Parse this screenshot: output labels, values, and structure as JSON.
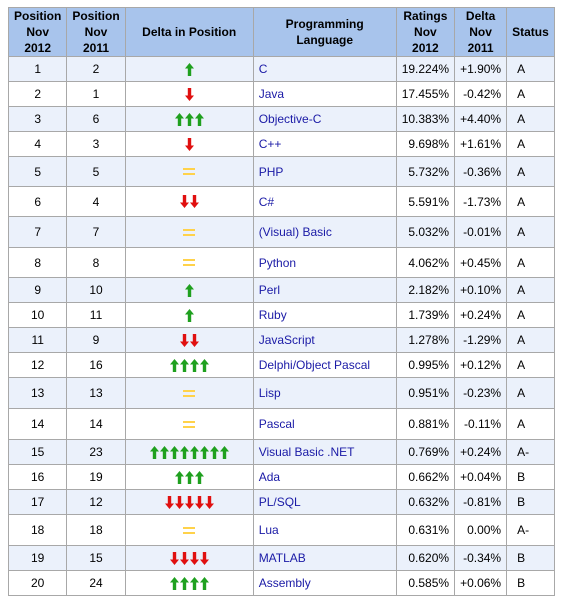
{
  "headers": {
    "pos_now": [
      "Position",
      "Nov 2012"
    ],
    "pos_prev": [
      "Position",
      "Nov 2011"
    ],
    "delta_pos": "Delta in Position",
    "language": "Programming Language",
    "ratings": [
      "Ratings",
      "Nov 2012"
    ],
    "delta": [
      "Delta",
      "Nov 2011"
    ],
    "status": "Status"
  },
  "colors": {
    "header_bg": "#a8c4ec",
    "stripe_bg": "#ebf1fb",
    "up": "#1fa01f",
    "down": "#e01010",
    "equal": "#ffd24a",
    "link": "#1a1aa6"
  },
  "rows": [
    {
      "pos": "1",
      "prev": "2",
      "trend": "up",
      "n": 1,
      "lang": "C",
      "rating": "19.224%",
      "delta": "+1.90%",
      "status": "A",
      "h": "h2"
    },
    {
      "pos": "2",
      "prev": "1",
      "trend": "down",
      "n": 1,
      "lang": "Java",
      "rating": "17.455%",
      "delta": "-0.42%",
      "status": "A",
      "h": "h2"
    },
    {
      "pos": "3",
      "prev": "6",
      "trend": "up",
      "n": 3,
      "lang": "Objective-C",
      "rating": "10.383%",
      "delta": "+4.40%",
      "status": "A",
      "h": "h2"
    },
    {
      "pos": "4",
      "prev": "3",
      "trend": "down",
      "n": 1,
      "lang": "C++",
      "rating": "9.698%",
      "delta": "+1.61%",
      "status": "A",
      "h": "h2"
    },
    {
      "pos": "5",
      "prev": "5",
      "trend": "equal",
      "n": 1,
      "lang": "PHP",
      "rating": "5.732%",
      "delta": "-0.36%",
      "status": "A",
      "h": "h1"
    },
    {
      "pos": "6",
      "prev": "4",
      "trend": "down",
      "n": 2,
      "lang": "C#",
      "rating": "5.591%",
      "delta": "-1.73%",
      "status": "A",
      "h": "h1"
    },
    {
      "pos": "7",
      "prev": "7",
      "trend": "equal",
      "n": 1,
      "lang": "(Visual) Basic",
      "rating": "5.032%",
      "delta": "-0.01%",
      "status": "A",
      "h": "h3"
    },
    {
      "pos": "8",
      "prev": "8",
      "trend": "equal",
      "n": 1,
      "lang": "Python",
      "rating": "4.062%",
      "delta": "+0.45%",
      "status": "A",
      "h": "h1"
    },
    {
      "pos": "9",
      "prev": "10",
      "trend": "up",
      "n": 1,
      "lang": "Perl",
      "rating": "2.182%",
      "delta": "+0.10%",
      "status": "A",
      "h": "h2"
    },
    {
      "pos": "10",
      "prev": "11",
      "trend": "up",
      "n": 1,
      "lang": "Ruby",
      "rating": "1.739%",
      "delta": "+0.24%",
      "status": "A",
      "h": "h2"
    },
    {
      "pos": "11",
      "prev": "9",
      "trend": "down",
      "n": 2,
      "lang": "JavaScript",
      "rating": "1.278%",
      "delta": "-1.29%",
      "status": "A",
      "h": "h2"
    },
    {
      "pos": "12",
      "prev": "16",
      "trend": "up",
      "n": 4,
      "lang": "Delphi/Object Pascal",
      "rating": "0.995%",
      "delta": "+0.12%",
      "status": "A",
      "h": "h2"
    },
    {
      "pos": "13",
      "prev": "13",
      "trend": "equal",
      "n": 1,
      "lang": "Lisp",
      "rating": "0.951%",
      "delta": "-0.23%",
      "status": "A",
      "h": "h3"
    },
    {
      "pos": "14",
      "prev": "14",
      "trend": "equal",
      "n": 1,
      "lang": "Pascal",
      "rating": "0.881%",
      "delta": "-0.11%",
      "status": "A",
      "h": "h3"
    },
    {
      "pos": "15",
      "prev": "23",
      "trend": "up",
      "n": 8,
      "lang": "Visual Basic .NET",
      "rating": "0.769%",
      "delta": "+0.24%",
      "status": "A-",
      "h": "h2"
    },
    {
      "pos": "16",
      "prev": "19",
      "trend": "up",
      "n": 3,
      "lang": "Ada",
      "rating": "0.662%",
      "delta": "+0.04%",
      "status": "B",
      "h": "h2"
    },
    {
      "pos": "17",
      "prev": "12",
      "trend": "down",
      "n": 5,
      "lang": "PL/SQL",
      "rating": "0.632%",
      "delta": "-0.81%",
      "status": "B",
      "h": "h2"
    },
    {
      "pos": "18",
      "prev": "18",
      "trend": "equal",
      "n": 1,
      "lang": "Lua",
      "rating": "0.631%",
      "delta": "0.00%",
      "status": "A-",
      "h": "h3"
    },
    {
      "pos": "19",
      "prev": "15",
      "trend": "down",
      "n": 4,
      "lang": "MATLAB",
      "rating": "0.620%",
      "delta": "-0.34%",
      "status": "B",
      "h": "h2"
    },
    {
      "pos": "20",
      "prev": "24",
      "trend": "up",
      "n": 4,
      "lang": "Assembly",
      "rating": "0.585%",
      "delta": "+0.06%",
      "status": "B",
      "h": "h2"
    }
  ]
}
